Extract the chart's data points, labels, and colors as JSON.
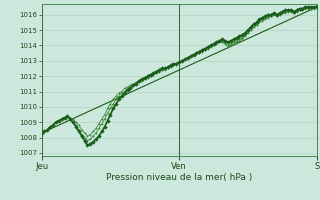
{
  "title": "Pression niveau de la mer( hPa )",
  "xlabel_ticks": [
    "Jeu",
    "Ven",
    "S"
  ],
  "xlabel_tick_positions": [
    0,
    48,
    96
  ],
  "ylim": [
    1006.8,
    1016.7
  ],
  "yticks": [
    1007,
    1008,
    1009,
    1010,
    1011,
    1012,
    1013,
    1014,
    1015,
    1016
  ],
  "bg_color": "#cce8dc",
  "grid_color": "#aaccbb",
  "line_color_main": "#1a5c1a",
  "line_color_light": "#3a8a3a",
  "total_points": 97,
  "main_series": [
    1008.3,
    1008.4,
    1008.5,
    1008.7,
    1008.8,
    1009.0,
    1009.1,
    1009.2,
    1009.3,
    1009.4,
    1009.2,
    1009.0,
    1008.7,
    1008.4,
    1008.1,
    1007.8,
    1007.5,
    1007.6,
    1007.7,
    1007.9,
    1008.1,
    1008.4,
    1008.7,
    1009.1,
    1009.5,
    1009.9,
    1010.2,
    1010.5,
    1010.7,
    1010.9,
    1011.1,
    1011.2,
    1011.4,
    1011.5,
    1011.7,
    1011.8,
    1011.9,
    1012.0,
    1012.1,
    1012.2,
    1012.3,
    1012.4,
    1012.5,
    1012.5,
    1012.6,
    1012.7,
    1012.8,
    1012.8,
    1012.9,
    1013.0,
    1013.1,
    1013.2,
    1013.3,
    1013.4,
    1013.5,
    1013.6,
    1013.7,
    1013.8,
    1013.9,
    1014.0,
    1014.1,
    1014.2,
    1014.3,
    1014.4,
    1014.3,
    1014.2,
    1014.3,
    1014.4,
    1014.5,
    1014.6,
    1014.7,
    1014.8,
    1015.0,
    1015.2,
    1015.4,
    1015.5,
    1015.7,
    1015.8,
    1015.9,
    1016.0,
    1016.0,
    1016.1,
    1016.0,
    1016.1,
    1016.2,
    1016.3,
    1016.3,
    1016.3,
    1016.2,
    1016.3,
    1016.4,
    1016.4,
    1016.5,
    1016.5,
    1016.5,
    1016.5,
    1016.5
  ],
  "secondary_series": [
    1008.3,
    1008.4,
    1008.5,
    1008.7,
    1008.8,
    1009.0,
    1009.1,
    1009.2,
    1009.3,
    1009.4,
    1009.3,
    1009.2,
    1009.0,
    1008.8,
    1008.5,
    1008.3,
    1008.1,
    1008.2,
    1008.4,
    1008.6,
    1008.9,
    1009.2,
    1009.5,
    1009.9,
    1010.2,
    1010.5,
    1010.7,
    1010.9,
    1011.0,
    1011.2,
    1011.3,
    1011.4,
    1011.5,
    1011.6,
    1011.7,
    1011.8,
    1011.9,
    1012.0,
    1012.1,
    1012.2,
    1012.3,
    1012.3,
    1012.4,
    1012.5,
    1012.6,
    1012.6,
    1012.7,
    1012.8,
    1012.9,
    1013.0,
    1013.1,
    1013.2,
    1013.3,
    1013.4,
    1013.5,
    1013.5,
    1013.6,
    1013.7,
    1013.8,
    1013.9,
    1014.0,
    1014.1,
    1014.2,
    1014.2,
    1014.1,
    1013.9,
    1014.0,
    1014.1,
    1014.2,
    1014.3,
    1014.4,
    1014.6,
    1014.8,
    1015.0,
    1015.2,
    1015.3,
    1015.5,
    1015.6,
    1015.7,
    1015.8,
    1015.9,
    1016.0,
    1015.9,
    1016.0,
    1016.1,
    1016.1,
    1016.2,
    1016.2,
    1016.1,
    1016.2,
    1016.3,
    1016.3,
    1016.4,
    1016.4,
    1016.4,
    1016.4,
    1016.5
  ],
  "tertiary_series": [
    1008.3,
    1008.4,
    1008.5,
    1008.7,
    1008.8,
    1009.0,
    1009.1,
    1009.2,
    1009.3,
    1009.4,
    1009.2,
    1009.0,
    1008.8,
    1008.5,
    1008.2,
    1008.0,
    1007.8,
    1007.9,
    1008.1,
    1008.3,
    1008.6,
    1008.9,
    1009.2,
    1009.6,
    1009.9,
    1010.2,
    1010.5,
    1010.7,
    1010.9,
    1011.0,
    1011.2,
    1011.3,
    1011.4,
    1011.5,
    1011.6,
    1011.7,
    1011.8,
    1011.9,
    1012.0,
    1012.1,
    1012.2,
    1012.3,
    1012.4,
    1012.4,
    1012.5,
    1012.6,
    1012.7,
    1012.8,
    1012.9,
    1013.0,
    1013.1,
    1013.2,
    1013.3,
    1013.4,
    1013.5,
    1013.6,
    1013.7,
    1013.8,
    1013.9,
    1014.0,
    1014.1,
    1014.2,
    1014.3,
    1014.3,
    1014.2,
    1014.0,
    1014.1,
    1014.2,
    1014.3,
    1014.4,
    1014.5,
    1014.7,
    1014.9,
    1015.1,
    1015.3,
    1015.4,
    1015.6,
    1015.7,
    1015.8,
    1015.9,
    1016.0,
    1016.1,
    1016.0,
    1016.1,
    1016.2,
    1016.2,
    1016.3,
    1016.3,
    1016.2,
    1016.3,
    1016.4,
    1016.4,
    1016.5,
    1016.5,
    1016.5,
    1016.5,
    1016.6
  ],
  "linear_trend": [
    1008.3,
    1016.5
  ],
  "linear_trend_x": [
    0,
    96
  ]
}
